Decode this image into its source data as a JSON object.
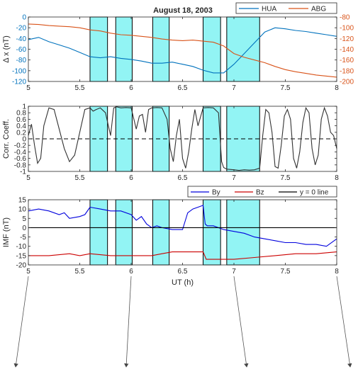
{
  "chart_data": [
    {
      "type": "line",
      "title": "August 18, 2003",
      "xlabel": "",
      "ylabel": "Δ x (nT)",
      "xlim": [
        5,
        8
      ],
      "ylim": [
        -120,
        0
      ],
      "ylim_right": [
        -200,
        -80
      ],
      "xticks": [
        "5",
        "5.5",
        "6",
        "6.5",
        "7",
        "7.5",
        "8"
      ],
      "yticks": [
        "0",
        "-20",
        "-40",
        "-60",
        "-80",
        "-100",
        "-120"
      ],
      "yticks_right": [
        "-80",
        "-100",
        "-120",
        "-140",
        "-160",
        "-180",
        "-200"
      ],
      "legend_position": "top-right",
      "shaded_intervals": [
        [
          5.6,
          5.77
        ],
        [
          5.85,
          6.01
        ],
        [
          6.21,
          6.37
        ],
        [
          6.7,
          6.87
        ],
        [
          6.93,
          7.25
        ]
      ],
      "series": [
        {
          "name": "HUA",
          "color": "#0072BD",
          "axis": "left",
          "x": [
            5.0,
            5.1,
            5.2,
            5.3,
            5.4,
            5.5,
            5.6,
            5.7,
            5.8,
            5.9,
            6.0,
            6.1,
            6.2,
            6.3,
            6.4,
            6.5,
            6.6,
            6.7,
            6.8,
            6.9,
            7.0,
            7.1,
            7.2,
            7.3,
            7.4,
            7.5,
            7.6,
            7.7,
            7.8,
            7.9,
            8.0
          ],
          "y": [
            -42,
            -38,
            -46,
            -52,
            -58,
            -66,
            -74,
            -76,
            -74,
            -77,
            -79,
            -82,
            -86,
            -86,
            -84,
            -88,
            -92,
            -99,
            -104,
            -104,
            -88,
            -68,
            -48,
            -28,
            -20,
            -22,
            -25,
            -27,
            -30,
            -33,
            -36
          ]
        },
        {
          "name": "ABG",
          "color": "#D95319",
          "axis": "right",
          "x": [
            5.0,
            5.1,
            5.2,
            5.3,
            5.4,
            5.5,
            5.6,
            5.7,
            5.8,
            5.9,
            6.0,
            6.1,
            6.2,
            6.3,
            6.4,
            6.5,
            6.6,
            6.7,
            6.8,
            6.9,
            7.0,
            7.1,
            7.2,
            7.3,
            7.4,
            7.5,
            7.6,
            7.7,
            7.8,
            7.9,
            8.0
          ],
          "y": [
            -93,
            -94,
            -96,
            -97,
            -98,
            -100,
            -104,
            -106,
            -110,
            -113,
            -114,
            -116,
            -118,
            -121,
            -123,
            -124,
            -123,
            -125,
            -127,
            -134,
            -148,
            -155,
            -160,
            -165,
            -172,
            -178,
            -182,
            -185,
            -188,
            -190,
            -192
          ]
        }
      ]
    },
    {
      "type": "line",
      "title": "",
      "xlabel": "",
      "ylabel": "Corr. Coeff.",
      "xlim": [
        5,
        8
      ],
      "ylim": [
        -1,
        1
      ],
      "xticks": [
        "5",
        "5.5",
        "6",
        "6.5",
        "7",
        "7.5",
        "8"
      ],
      "yticks": [
        "1",
        "0.8",
        "0.6",
        "0.4",
        "0.2",
        "0",
        "-0.2",
        "-0.4",
        "-0.6",
        "-0.8",
        "-1"
      ],
      "zero_line": "dashed",
      "shaded_intervals": [
        [
          5.6,
          5.77
        ],
        [
          5.85,
          6.01
        ],
        [
          6.21,
          6.37
        ],
        [
          6.7,
          6.87
        ],
        [
          6.93,
          7.25
        ]
      ],
      "series": [
        {
          "name": "",
          "color": "#333333",
          "x": [
            5.0,
            5.03,
            5.06,
            5.09,
            5.12,
            5.15,
            5.2,
            5.25,
            5.3,
            5.35,
            5.4,
            5.45,
            5.5,
            5.55,
            5.6,
            5.63,
            5.66,
            5.7,
            5.75,
            5.8,
            5.83,
            5.86,
            5.9,
            5.95,
            6.0,
            6.05,
            6.08,
            6.11,
            6.14,
            6.17,
            6.2,
            6.25,
            6.3,
            6.35,
            6.38,
            6.41,
            6.44,
            6.47,
            6.5,
            6.53,
            6.56,
            6.59,
            6.62,
            6.65,
            6.7,
            6.75,
            6.8,
            6.85,
            6.88,
            6.9,
            6.93,
            7.0,
            7.05,
            7.1,
            7.15,
            7.2,
            7.25,
            7.28,
            7.31,
            7.34,
            7.37,
            7.4,
            7.43,
            7.46,
            7.49,
            7.52,
            7.55,
            7.58,
            7.61,
            7.64,
            7.67,
            7.7,
            7.73,
            7.76,
            7.79,
            7.82,
            7.85,
            7.88,
            7.91,
            7.94,
            7.97,
            8.0
          ],
          "y": [
            0.1,
            0.45,
            -0.2,
            -0.75,
            -0.6,
            0.4,
            0.95,
            0.9,
            0.3,
            -0.3,
            -0.7,
            -0.5,
            0.2,
            0.9,
            0.95,
            0.85,
            0.9,
            0.95,
            0.8,
            0.1,
            0.95,
            0.98,
            0.95,
            0.96,
            0.95,
            0.3,
            0.7,
            0.75,
            0.2,
            0.9,
            0.95,
            0.96,
            0.95,
            0.6,
            -0.3,
            -0.7,
            0.1,
            0.6,
            -0.6,
            -0.9,
            -0.4,
            0.3,
            0.9,
            0.4,
            0.95,
            0.96,
            0.95,
            0.8,
            -0.7,
            -0.88,
            -0.93,
            -0.95,
            -0.97,
            -0.95,
            -0.96,
            -0.95,
            -0.9,
            0.1,
            0.9,
            0.8,
            0.2,
            -0.85,
            -0.9,
            -0.2,
            0.7,
            0.9,
            0.6,
            -0.6,
            -0.9,
            -0.4,
            0.5,
            0.95,
            0.8,
            -0.3,
            -0.8,
            -0.5,
            0.6,
            0.95,
            0.7,
            0.2,
            0.1,
            -0.3
          ]
        }
      ]
    },
    {
      "type": "line",
      "title": "",
      "xlabel": "UT (h)",
      "ylabel": "IMF (nT)",
      "xlim": [
        5,
        8
      ],
      "ylim": [
        -20,
        15
      ],
      "xticks": [
        "5",
        "5.5",
        "6",
        "6.5",
        "7",
        "7.5",
        "8"
      ],
      "yticks": [
        "15",
        "10",
        "5",
        "0",
        "-5",
        "-10",
        "-15",
        "-20"
      ],
      "legend_position": "top-right",
      "shaded_intervals": [
        [
          5.6,
          5.77
        ],
        [
          5.85,
          6.01
        ],
        [
          6.21,
          6.37
        ],
        [
          6.7,
          6.87
        ],
        [
          6.93,
          7.25
        ]
      ],
      "series": [
        {
          "name": "By",
          "color": "#0000DD",
          "x": [
            5.0,
            5.1,
            5.2,
            5.3,
            5.35,
            5.4,
            5.5,
            5.55,
            5.6,
            5.7,
            5.8,
            5.9,
            6.0,
            6.05,
            6.1,
            6.15,
            6.2,
            6.25,
            6.3,
            6.4,
            6.5,
            6.55,
            6.6,
            6.65,
            6.7,
            6.72,
            6.74,
            6.8,
            6.9,
            7.0,
            7.1,
            7.2,
            7.3,
            7.4,
            7.5,
            7.6,
            7.7,
            7.8,
            7.9,
            8.0
          ],
          "y": [
            9,
            10,
            9,
            7,
            8,
            5,
            6,
            7,
            11,
            10,
            9,
            9,
            7,
            4,
            6,
            2,
            0,
            1,
            0,
            -1,
            -1,
            8,
            10,
            11,
            12,
            2,
            1,
            1,
            -1,
            -2,
            -3,
            -5,
            -6,
            -7,
            -8,
            -8,
            -9,
            -9,
            -10,
            -6
          ]
        },
        {
          "name": "Bz",
          "color": "#CC0000",
          "x": [
            5.0,
            5.2,
            5.4,
            5.5,
            5.6,
            5.8,
            6.0,
            6.2,
            6.3,
            6.4,
            6.5,
            6.6,
            6.7,
            6.73,
            6.8,
            6.9,
            7.0,
            7.2,
            7.4,
            7.6,
            7.8,
            8.0
          ],
          "y": [
            -15,
            -15,
            -14,
            -15,
            -14,
            -15,
            -15,
            -15,
            -14,
            -13,
            -13,
            -13,
            -13,
            -17,
            -17,
            -17,
            -17,
            -16,
            -15,
            -14,
            -14,
            -13
          ]
        },
        {
          "name": "y = 0 line",
          "color": "#000000",
          "x": [
            5,
            8
          ],
          "y": [
            0,
            0
          ]
        }
      ]
    }
  ]
}
